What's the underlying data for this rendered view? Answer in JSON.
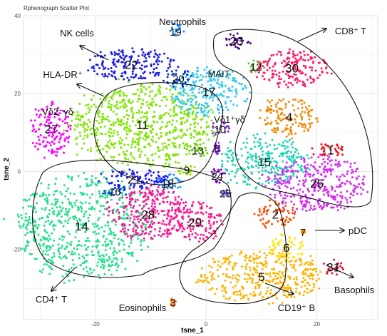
{
  "chart_data": {
    "type": "scatter",
    "title": "Rphenograph Scatter Plot",
    "xlabel": "tsne_1",
    "ylabel": "tsne_2",
    "xlim": [
      -33,
      31
    ],
    "ylim": [
      -38,
      40
    ],
    "x_ticks": [
      -20,
      0,
      20
    ],
    "y_ticks": [
      -20,
      0,
      20,
      40
    ],
    "grid": true,
    "legend": "none",
    "clusters": [
      {
        "id": "1",
        "x": 22.5,
        "y": 5.5,
        "color": "#e6101f",
        "size": [
          3.5,
          1.6
        ]
      },
      {
        "id": "2",
        "x": 12.5,
        "y": -11.0,
        "color": "#ff4d00",
        "size": [
          3.5,
          3.5
        ]
      },
      {
        "id": "3",
        "x": -6.0,
        "y": -33.5,
        "color": "#ff7f24",
        "size": [
          0.5,
          1.0
        ]
      },
      {
        "id": "4",
        "x": 15.0,
        "y": 14.0,
        "color": "#f08c0a",
        "size": [
          5.0,
          5.0
        ]
      },
      {
        "id": "5",
        "x": 10.0,
        "y": -27.0,
        "color": "#ffb300",
        "size": [
          11.0,
          6.5
        ]
      },
      {
        "id": "6",
        "x": 14.5,
        "y": -19.5,
        "color": "#ffe600",
        "size": [
          3.0,
          3.5
        ]
      },
      {
        "id": "7",
        "x": 17.5,
        "y": -15.5,
        "color": "#ff9900",
        "size": [
          0.4,
          0.4
        ]
      },
      {
        "id": "8",
        "x": 2.0,
        "y": 6.0,
        "color": "#9b30ff",
        "size": [
          0.7,
          1.5
        ]
      },
      {
        "id": "9",
        "x": -3.5,
        "y": 0.5,
        "color": "#9ade00",
        "size": [
          1.8,
          1.8
        ]
      },
      {
        "id": "10",
        "x": 2.5,
        "y": 11.0,
        "color": "#7b2bd6",
        "size": [
          1.8,
          1.8
        ]
      },
      {
        "id": "11",
        "x": -11.5,
        "y": 12.0,
        "color": "#7fe600",
        "size": [
          12.5,
          10.5
        ]
      },
      {
        "id": "12",
        "x": 9.0,
        "y": 27.0,
        "color": "#5ac832",
        "size": [
          1.8,
          1.8
        ]
      },
      {
        "id": "13",
        "x": -1.5,
        "y": 5.5,
        "color": "#66cc00",
        "size": [
          2.2,
          2.2
        ]
      },
      {
        "id": "14",
        "x": -22.5,
        "y": -14.0,
        "color": "#22e08a",
        "size": [
          12.0,
          13.0
        ]
      },
      {
        "id": "15",
        "x": 10.5,
        "y": 2.5,
        "color": "#1fd4b4",
        "size": [
          7.5,
          6.5
        ]
      },
      {
        "id": "16",
        "x": -16.5,
        "y": -5.0,
        "color": "#0d47d9",
        "size": [
          2.5,
          1.5
        ]
      },
      {
        "id": "17",
        "x": 0.5,
        "y": 20.5,
        "color": "#33c8f2",
        "size": [
          7.0,
          6.0
        ]
      },
      {
        "id": "18",
        "x": -7.0,
        "y": -3.0,
        "color": "#1e90ff",
        "size": [
          2.5,
          2.5
        ]
      },
      {
        "id": "19",
        "x": -5.5,
        "y": 36.0,
        "color": "#1e90ff",
        "size": [
          1.5,
          2.0
        ]
      },
      {
        "id": "20",
        "x": -5.0,
        "y": 24.0,
        "color": "#0033cc",
        "size": [
          2.5,
          2.5
        ]
      },
      {
        "id": "21",
        "x": -13.0,
        "y": -2.0,
        "color": "#1a1aff",
        "size": [
          6.5,
          2.5
        ]
      },
      {
        "id": "22",
        "x": -13.5,
        "y": 27.5,
        "color": "#1a1ae6",
        "size": [
          8.0,
          4.0
        ]
      },
      {
        "id": "23",
        "x": 5.5,
        "y": 33.5,
        "color": "#4b0082",
        "size": [
          2.5,
          2.0
        ]
      },
      {
        "id": "24",
        "x": 2.0,
        "y": -1.0,
        "color": "#6a0dad",
        "size": [
          1.5,
          2.0
        ]
      },
      {
        "id": "25",
        "x": 3.5,
        "y": -5.5,
        "color": "#6a5acd",
        "size": [
          1.0,
          1.0
        ]
      },
      {
        "id": "26",
        "x": 20.0,
        "y": -3.0,
        "color": "#d32cf0",
        "size": [
          9.0,
          7.0
        ]
      },
      {
        "id": "27",
        "x": -28.0,
        "y": 11.0,
        "color": "#ff00ff",
        "size": [
          3.5,
          7.0
        ]
      },
      {
        "id": "28",
        "x": -10.5,
        "y": -11.0,
        "color": "#ff1493",
        "size": [
          7.0,
          7.0
        ]
      },
      {
        "id": "29",
        "x": -2.0,
        "y": -13.0,
        "color": "#ff1a8c",
        "size": [
          5.0,
          5.0
        ]
      },
      {
        "id": "30",
        "x": 15.5,
        "y": 26.5,
        "color": "#ff1a66",
        "size": [
          6.5,
          5.0
        ]
      },
      {
        "id": "31",
        "x": 23.0,
        "y": -24.5,
        "color": "#e8123c",
        "size": [
          2.0,
          2.0
        ]
      }
    ],
    "annotations": [
      {
        "text": "Neutrophils"
      },
      {
        "text": "NK cells"
      },
      {
        "text": "CD8⁺ T"
      },
      {
        "text": "HLA-DR⁺"
      },
      {
        "text": "MAIT"
      },
      {
        "text": "Vδ2⁺γδ"
      },
      {
        "text": "Vδ1⁺γδ"
      },
      {
        "text": "pDC"
      },
      {
        "text": "Basophils"
      },
      {
        "text": "CD4⁺ T"
      },
      {
        "text": "Eosinophils"
      },
      {
        "text": "CD19⁺ B"
      }
    ]
  }
}
